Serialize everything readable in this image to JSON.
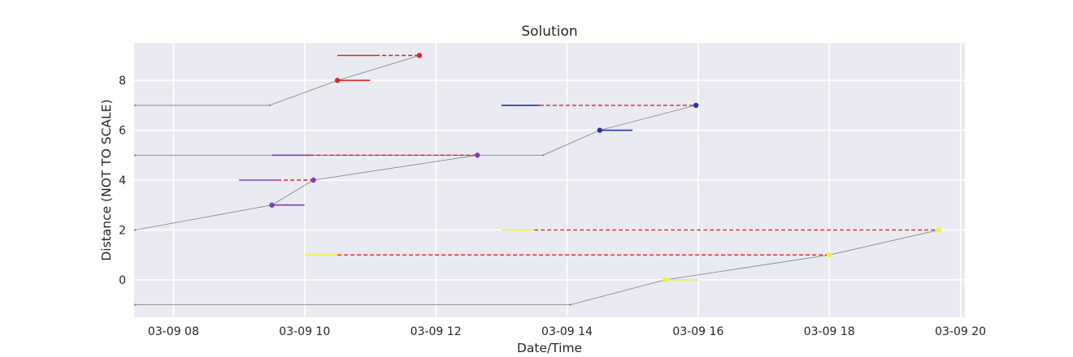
{
  "chart_data": {
    "type": "line",
    "title": "Solution",
    "xlabel": "Date/Time",
    "ylabel": "Distance (NOT TO SCALE)",
    "x_axis": {
      "kind": "datetime",
      "date": "2000-03-09",
      "xlim": [
        "07:24",
        "20:04"
      ]
    },
    "ylim": [
      -1.5,
      9.5
    ],
    "grid": true,
    "background_color": "#EAEAF2",
    "grid_color": "#FFFFFF",
    "x_ticks": [
      {
        "time": "08:00",
        "label": "03-09 08"
      },
      {
        "time": "10:00",
        "label": "03-09 10"
      },
      {
        "time": "12:00",
        "label": "03-09 12"
      },
      {
        "time": "14:00",
        "label": "03-09 14"
      },
      {
        "time": "16:00",
        "label": "03-09 16"
      },
      {
        "time": "18:00",
        "label": "03-09 18"
      },
      {
        "time": "20:00",
        "label": "03-09 20"
      }
    ],
    "y_ticks": [
      {
        "value": 0,
        "label": "0"
      },
      {
        "value": 2,
        "label": "2"
      },
      {
        "value": 4,
        "label": "4"
      },
      {
        "value": 6,
        "label": "6"
      },
      {
        "value": 8,
        "label": "8"
      }
    ],
    "series": [
      {
        "color": "#D62728",
        "route": [
          {
            "time": "07:25",
            "y": 7
          },
          {
            "time": "09:28",
            "y": 7
          },
          {
            "time": "10:30",
            "y": 8
          },
          {
            "time": "11:45",
            "y": 9
          }
        ],
        "stops": [
          {
            "y": 8,
            "window_start": "10:30",
            "window_end": "11:00",
            "arrival": "10:30"
          },
          {
            "y": 9,
            "window_start": "10:30",
            "window_end": "11:05",
            "arrival": "11:45"
          }
        ]
      },
      {
        "color": "#2832A8",
        "route": [
          {
            "time": "07:25",
            "y": 5
          },
          {
            "time": "13:38",
            "y": 5
          },
          {
            "time": "14:30",
            "y": 6
          },
          {
            "time": "15:58",
            "y": 7
          }
        ],
        "stops": [
          {
            "y": 6,
            "window_start": "14:30",
            "window_end": "15:00",
            "arrival": "14:30"
          },
          {
            "y": 7,
            "window_start": "13:00",
            "window_end": "13:35",
            "arrival": "15:58"
          }
        ]
      },
      {
        "color": "#8040B8",
        "route": [
          {
            "time": "07:25",
            "y": 2
          },
          {
            "time": "09:30",
            "y": 3
          },
          {
            "time": "10:08",
            "y": 4
          },
          {
            "time": "12:38",
            "y": 5
          }
        ],
        "stops": [
          {
            "y": 3,
            "window_start": "09:30",
            "window_end": "10:00",
            "arrival": "09:30"
          },
          {
            "y": 4,
            "window_start": "09:00",
            "window_end": "09:35",
            "arrival": "10:08"
          },
          {
            "y": 5,
            "window_start": "09:30",
            "window_end": "10:05",
            "arrival": "12:38"
          }
        ]
      },
      {
        "color": "#F0F040",
        "route": [
          {
            "time": "07:25",
            "y": -1
          },
          {
            "time": "14:03",
            "y": -1
          },
          {
            "time": "15:30",
            "y": 0
          },
          {
            "time": "18:00",
            "y": 1
          },
          {
            "time": "19:40",
            "y": 2
          }
        ],
        "stops": [
          {
            "y": 0,
            "window_start": "15:30",
            "window_end": "16:00",
            "arrival": "15:30"
          },
          {
            "y": 1,
            "window_start": "10:00",
            "window_end": "10:30",
            "arrival": "18:00"
          },
          {
            "y": 2,
            "window_start": "13:00",
            "window_end": "13:30",
            "arrival": "19:40"
          }
        ]
      }
    ],
    "route_line_color": "#808080",
    "wait_line_color": "#E02020"
  }
}
